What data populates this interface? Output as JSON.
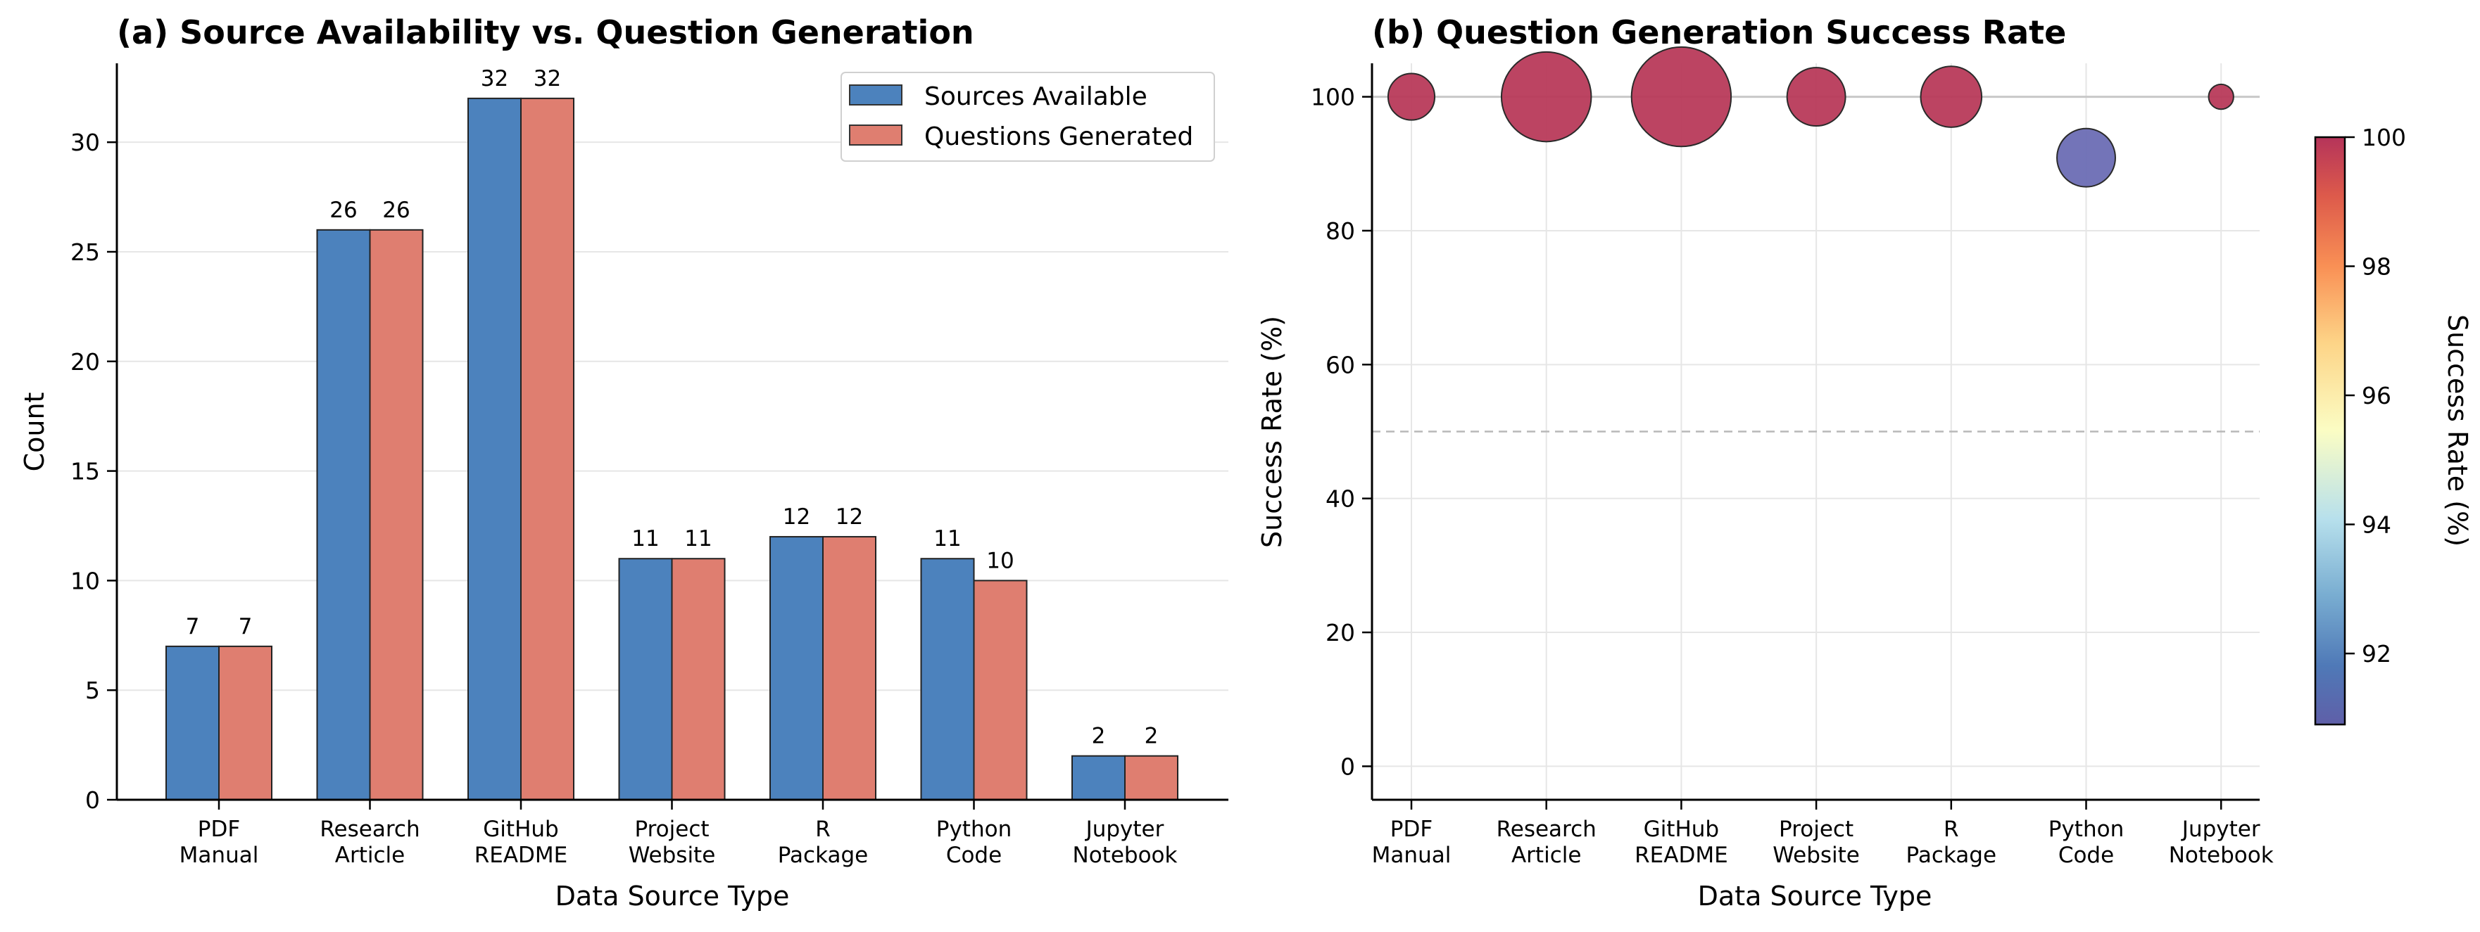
{
  "chart_data": [
    {
      "type": "bar",
      "title": "(a) Source Availability vs. Question Generation",
      "xlabel": "Data Source Type",
      "ylabel": "Count",
      "ylim": [
        0,
        33.6
      ],
      "yticks": [
        "0",
        "5",
        "10",
        "15",
        "20",
        "25",
        "30"
      ],
      "grid": "horizontal",
      "legend_position": "top-right",
      "categories": [
        [
          "PDF",
          "Manual"
        ],
        [
          "Research",
          "Article"
        ],
        [
          "GitHub",
          "README"
        ],
        [
          "Project",
          "Website"
        ],
        [
          "R",
          "Package"
        ],
        [
          "Python",
          "Code"
        ],
        [
          "Jupyter",
          "Notebook"
        ]
      ],
      "series": [
        {
          "name": "Sources Available",
          "color": "#4c82bd",
          "values": [
            7,
            26,
            32,
            11,
            12,
            11,
            2
          ],
          "labels": [
            "7",
            "26",
            "32",
            "11",
            "12",
            "11",
            "2"
          ]
        },
        {
          "name": "Questions Generated",
          "color": "#df7e70",
          "values": [
            7,
            26,
            32,
            11,
            12,
            10,
            2
          ],
          "labels": [
            "7",
            "26",
            "32",
            "11",
            "12",
            "10",
            "2"
          ]
        }
      ]
    },
    {
      "type": "scatter",
      "title": "(b) Question Generation Success Rate",
      "xlabel": "Data Source Type",
      "ylabel": "Success Rate (%)",
      "ylim": [
        -5,
        105
      ],
      "yticks": [
        "0",
        "20",
        "40",
        "60",
        "80",
        "100"
      ],
      "grid": "both",
      "reference_lines": [
        100,
        50
      ],
      "categories": [
        [
          "PDF",
          "Manual"
        ],
        [
          "Research",
          "Article"
        ],
        [
          "GitHub",
          "README"
        ],
        [
          "Project",
          "Website"
        ],
        [
          "R",
          "Package"
        ],
        [
          "Python",
          "Code"
        ],
        [
          "Jupyter",
          "Notebook"
        ]
      ],
      "success_rate": [
        100,
        100,
        100,
        100,
        100,
        90.9,
        100
      ],
      "marker_size_by_sources": [
        7,
        26,
        32,
        11,
        12,
        11,
        2
      ],
      "colorbar": {
        "label": "Success Rate (%)",
        "range": [
          90.9,
          100
        ],
        "ticks": [
          "92",
          "94",
          "96",
          "98",
          "100"
        ],
        "colormap": "RdYlBu_r"
      }
    }
  ]
}
